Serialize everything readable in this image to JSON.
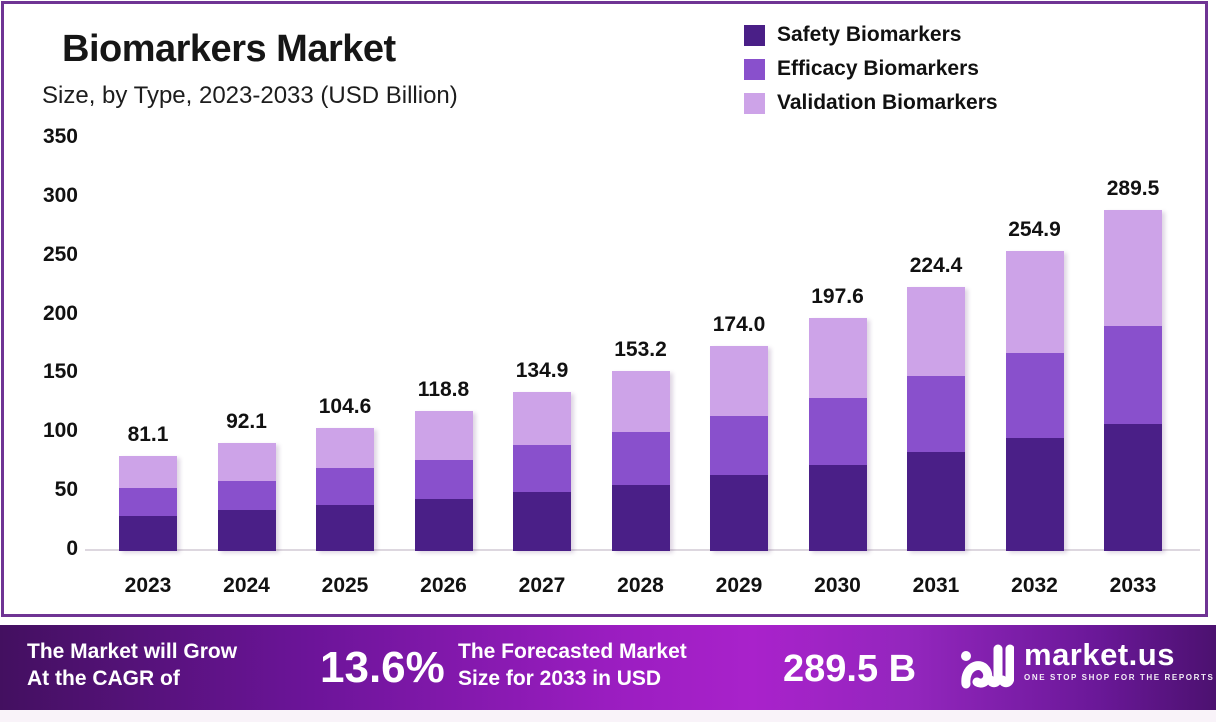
{
  "title": "Biomarkers Market",
  "subtitle": "Size, by Type, 2023-2033 (USD Billion)",
  "legend": [
    {
      "label": "Safety Biomarkers",
      "color": "#4A1F87"
    },
    {
      "label": "Efficacy Biomarkers",
      "color": "#8950CC"
    },
    {
      "label": "Validation Biomarkers",
      "color": "#CDA3E8"
    }
  ],
  "chart_data": {
    "type": "bar",
    "stacked": true,
    "title": "Biomarkers Market Size, by Type, 2023-2033 (USD Billion)",
    "categories": [
      "2023",
      "2024",
      "2025",
      "2026",
      "2027",
      "2028",
      "2029",
      "2030",
      "2031",
      "2032",
      "2033"
    ],
    "series": [
      {
        "name": "Safety Biomarkers",
        "color": "#4A1F87",
        "values": [
          30.0,
          34.5,
          39.0,
          44.0,
          50.2,
          55.8,
          64.8,
          73.0,
          83.7,
          96.0,
          108.1
        ]
      },
      {
        "name": "Efficacy Biomarkers",
        "color": "#8950CC",
        "values": [
          23.2,
          25.3,
          31.1,
          33.6,
          40.2,
          45.3,
          49.5,
          57.1,
          65.3,
          72.4,
          83.4
        ]
      },
      {
        "name": "Validation Biomarkers",
        "color": "#CDA3E8",
        "values": [
          27.9,
          32.3,
          34.5,
          41.2,
          44.5,
          52.1,
          59.7,
          67.5,
          75.4,
          86.5,
          98.0
        ]
      }
    ],
    "totals": [
      81.1,
      92.1,
      104.6,
      118.8,
      134.9,
      153.2,
      174.0,
      197.6,
      224.4,
      254.9,
      289.5
    ],
    "total_labels": [
      "81.1",
      "92.1",
      "104.6",
      "118.8",
      "134.9",
      "153.2",
      "174.0",
      "197.6",
      "224.4",
      "254.9",
      "289.5"
    ],
    "xlabel": "",
    "ylabel": "",
    "ylim": [
      0,
      350
    ],
    "yticks": [
      0,
      50,
      100,
      150,
      200,
      250,
      300,
      350
    ],
    "grid": false,
    "legend_position": "top-right"
  },
  "footer": {
    "cagr_text_line1": "The Market will Grow",
    "cagr_text_line2": "At the CAGR of",
    "cagr_value": "13.6%",
    "forecast_text_line1": "The Forecasted Market",
    "forecast_text_line2": "Size for 2033 in USD",
    "forecast_value": "289.5 B",
    "brand_name": "market.us",
    "brand_tagline": "ONE STOP SHOP FOR THE REPORTS"
  },
  "colors": {
    "card_border": "#6F3494",
    "axis_line": "#DDD7DF",
    "text_dark": "#111111",
    "banner_text": "#FFFFFF",
    "banner_gradient_left": "#431060",
    "banner_gradient_mid": "#A922CB",
    "banner_gradient_right": "#4C1170"
  }
}
